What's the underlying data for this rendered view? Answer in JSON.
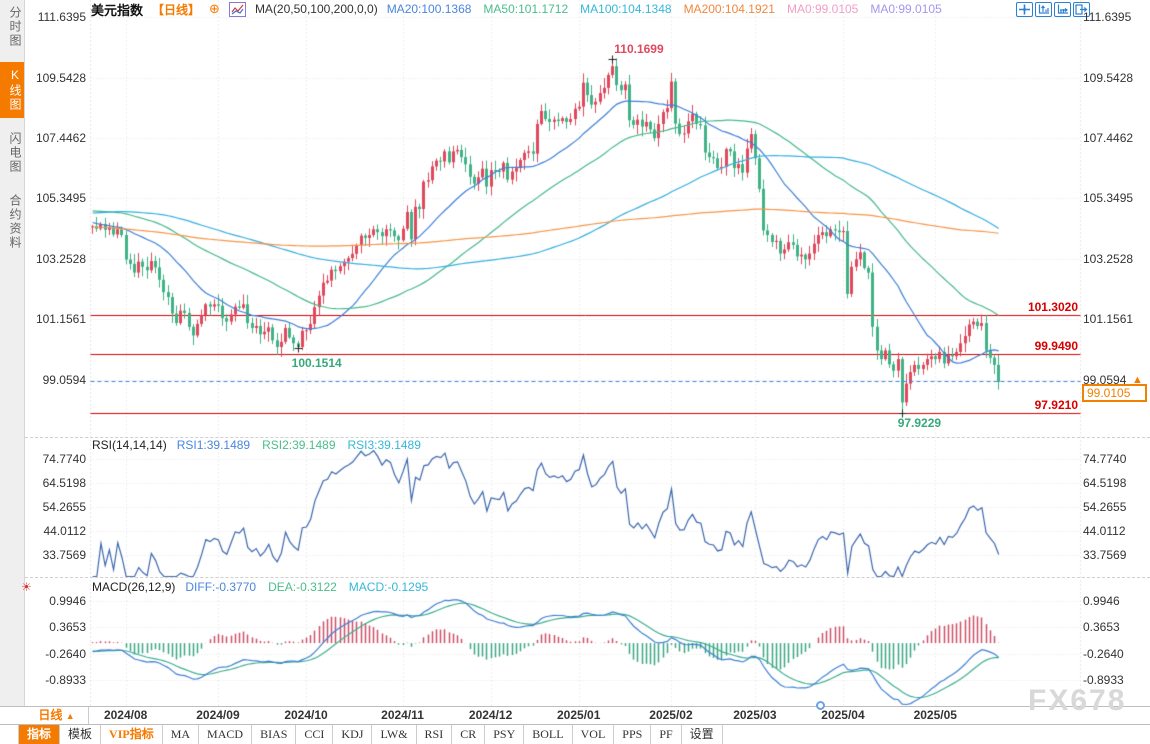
{
  "header": {
    "title": "美元指数",
    "period_tag": "【日线】",
    "plus_icon": "⊕",
    "ma_settings": "MA(20,50,100,200,0,0)",
    "ma_legend": [
      {
        "label": "MA20:100.1368",
        "color": "#4a86dd"
      },
      {
        "label": "MA50:101.1712",
        "color": "#4cbd8d"
      },
      {
        "label": "MA100:104.1348",
        "color": "#35b8d9"
      },
      {
        "label": "MA200:104.1921",
        "color": "#f0883f"
      },
      {
        "label": "MA0:99.0105",
        "color": "#f29cc6"
      },
      {
        "label": "MA0:99.0105",
        "color": "#a695ef"
      }
    ],
    "tool_icons": [
      "crosshair-icon",
      "zoom-axis-vertical-icon",
      "zoom-axis-horizontal-icon",
      "pan-right-icon"
    ]
  },
  "sidebar": {
    "tabs": [
      {
        "label": "分时图",
        "active": false
      },
      {
        "label": "K线图",
        "active": true
      },
      {
        "label": "闪电图",
        "active": false
      },
      {
        "label": "合约资料",
        "active": false
      }
    ]
  },
  "main_axis": {
    "labels": [
      "111.6395",
      "109.5428",
      "107.4462",
      "105.3495",
      "103.2528",
      "101.1561",
      "99.0594"
    ]
  },
  "rsi": {
    "title": "RSI(14,14,14)",
    "values": [
      {
        "label": "RSI1:39.1489",
        "color": "#4a86dd"
      },
      {
        "label": "RSI2:39.1489",
        "color": "#4cbd8d"
      },
      {
        "label": "RSI3:39.1489",
        "color": "#35b8d9"
      }
    ],
    "axis": [
      "74.7740",
      "64.5198",
      "54.2655",
      "44.0112",
      "33.7569"
    ]
  },
  "macd": {
    "title": "MACD(26,12,9)",
    "values": [
      {
        "label": "DIFF:-0.3770",
        "color": "#4a86dd"
      },
      {
        "label": "DEA:-0.3122",
        "color": "#4cbd8d"
      },
      {
        "label": "MACD:-0.1295",
        "color": "#35b8d9"
      }
    ],
    "axis": [
      "0.9946",
      "0.3653",
      "-0.2640",
      "-0.8933"
    ]
  },
  "price_lines": [
    {
      "label": "101.3020",
      "value": 101.302
    },
    {
      "label": "99.9490",
      "value": 99.949
    },
    {
      "label": "97.9210",
      "value": 97.921
    }
  ],
  "current_price": {
    "label": "99.0105",
    "value": 99.0105,
    "arrow": "▲"
  },
  "annotations": {
    "high": {
      "label": "110.1699",
      "value": 110.1699,
      "index": 124,
      "color": "#e0485e"
    },
    "low1": {
      "label": "100.1514",
      "value": 100.1514,
      "index": 49,
      "color": "#36a87c"
    },
    "low2": {
      "label": "97.9229",
      "value": 97.9229,
      "index": 193,
      "color": "#36a87c"
    }
  },
  "x_axis": {
    "period_button": "日线",
    "period_arrow": "▲"
  },
  "toolbar": {
    "items": [
      {
        "label": "指标",
        "style": "primary"
      },
      {
        "label": "模板",
        "style": "normal"
      },
      {
        "label": "VIP指标",
        "style": "vip"
      },
      {
        "label": "MA",
        "style": "normal"
      },
      {
        "label": "MACD",
        "style": "normal"
      },
      {
        "label": "BIAS",
        "style": "normal"
      },
      {
        "label": "CCI",
        "style": "normal"
      },
      {
        "label": "KDJ",
        "style": "normal"
      },
      {
        "label": "LW&",
        "style": "normal"
      },
      {
        "label": "RSI",
        "style": "normal"
      },
      {
        "label": "CR",
        "style": "normal"
      },
      {
        "label": "PSY",
        "style": "normal"
      },
      {
        "label": "BOLL",
        "style": "normal"
      },
      {
        "label": "VOL",
        "style": "normal"
      },
      {
        "label": "PPS",
        "style": "normal"
      },
      {
        "label": "PF",
        "style": "normal"
      },
      {
        "label": "设置",
        "style": "normal"
      }
    ]
  },
  "watermark": "FX678",
  "chart_data": {
    "type": "candlestick",
    "title": "美元指数 日线 (US Dollar Index Daily)",
    "slots": 236,
    "pre_len": 200,
    "pre_anchors": [
      [
        0,
        106.2
      ],
      [
        12,
        105.95
      ],
      [
        22,
        105.6
      ],
      [
        30,
        104.2
      ],
      [
        40,
        103.3
      ],
      [
        48,
        101.45
      ],
      [
        55,
        102.1
      ],
      [
        68,
        102.95
      ],
      [
        80,
        103.95
      ],
      [
        95,
        104.05
      ],
      [
        105,
        103.45
      ],
      [
        118,
        104.55
      ],
      [
        128,
        106.15
      ],
      [
        138,
        105.15
      ],
      [
        150,
        104.7
      ],
      [
        160,
        104.95
      ],
      [
        170,
        105.75
      ],
      [
        180,
        105.1
      ],
      [
        190,
        104.35
      ],
      [
        199,
        104.4
      ]
    ],
    "closes": [
      104.4,
      104.32,
      104.48,
      104.28,
      104.36,
      104.12,
      104.3,
      104.1,
      103.25,
      103.1,
      102.8,
      103.18,
      103.0,
      102.88,
      103.2,
      102.98,
      102.55,
      102.12,
      101.95,
      101.38,
      101.05,
      101.48,
      101.4,
      100.92,
      100.62,
      101.02,
      101.32,
      101.7,
      101.62,
      101.7,
      101.65,
      101.22,
      101.1,
      101.35,
      101.62,
      101.58,
      101.7,
      101.05,
      100.88,
      100.95,
      100.66,
      100.75,
      100.9,
      100.45,
      100.22,
      100.4,
      100.88,
      100.55,
      100.35,
      100.22,
      100.78,
      100.8,
      101.02,
      101.6,
      102.0,
      102.45,
      102.52,
      102.9,
      102.85,
      103.02,
      103.18,
      103.3,
      103.45,
      103.75,
      104.08,
      104.0,
      104.1,
      104.3,
      104.2,
      104.06,
      104.3,
      104.26,
      104.06,
      103.92,
      104.32,
      104.9,
      103.95,
      105.08,
      105.0,
      105.95,
      106.0,
      106.48,
      106.68,
      106.65,
      107.0,
      106.62,
      107.0,
      107.05,
      106.8,
      106.55,
      106.12,
      105.88,
      106.1,
      106.4,
      105.78,
      106.35,
      106.32,
      106.3,
      106.6,
      106.02,
      106.3,
      106.42,
      106.7,
      106.95,
      107.0,
      106.92,
      107.95,
      108.4,
      108.12,
      108.02,
      108.1,
      108.05,
      108.15,
      108.02,
      108.12,
      108.48,
      108.55,
      109.38,
      108.95,
      108.62,
      108.72,
      109.02,
      109.2,
      109.65,
      109.95,
      109.3,
      109.12,
      109.32,
      108.08,
      107.92,
      108.1,
      107.86,
      108.02,
      107.76,
      107.46,
      107.95,
      108.36,
      108.5,
      109.42,
      107.96,
      107.6,
      107.62,
      108.04,
      108.3,
      107.95,
      107.9,
      106.96,
      106.8,
      106.76,
      106.42,
      106.46,
      107.08,
      107.0,
      106.42,
      106.56,
      106.26,
      107.1,
      107.6,
      106.76,
      105.7,
      104.26,
      104.1,
      103.86,
      103.9,
      103.46,
      103.6,
      103.85,
      103.76,
      103.36,
      103.42,
      103.26,
      103.46,
      103.8,
      104.1,
      104.2,
      104.06,
      104.3,
      104.26,
      104.2,
      104.24,
      102.06,
      103.0,
      103.26,
      103.5,
      102.96,
      102.8,
      100.92,
      100.1,
      99.8,
      100.1,
      99.62,
      99.4,
      99.8,
      98.3,
      98.95,
      99.35,
      99.6,
      99.46,
      99.6,
      99.8,
      99.9,
      99.8,
      100.05,
      99.65,
      99.95,
      99.9,
      100.05,
      100.35,
      100.6,
      101.0,
      101.1,
      100.95,
      101.05,
      100.1,
      99.85,
      99.6,
      99.0105
    ],
    "months": [
      {
        "label": "2024/08",
        "index": 8
      },
      {
        "label": "2024/09",
        "index": 30
      },
      {
        "label": "2024/10",
        "index": 51
      },
      {
        "label": "2024/11",
        "index": 74
      },
      {
        "label": "2024/12",
        "index": 95
      },
      {
        "label": "2025/01",
        "index": 116
      },
      {
        "label": "2025/02",
        "index": 138
      },
      {
        "label": "2025/03",
        "index": 158
      },
      {
        "label": "2025/04",
        "index": 179
      },
      {
        "label": "2025/05",
        "index": 201
      }
    ],
    "ma_periods": [
      20,
      50,
      100,
      200
    ],
    "colors": {
      "candle_up": "#e0495c",
      "candle_down": "#41b287",
      "ma20": "#3f7fd6",
      "ma50": "#46b98a",
      "ma100": "#38aede",
      "ma200": "#f5954a",
      "rsi_line": "#3b66ad",
      "diff_line": "#3f7fd6",
      "dea_line": "#3fae8f",
      "hist_up": "#cc4f66",
      "hist_down": "#3aa583",
      "support_line": "#d60000",
      "cur_price_line": "#3f86de"
    }
  }
}
